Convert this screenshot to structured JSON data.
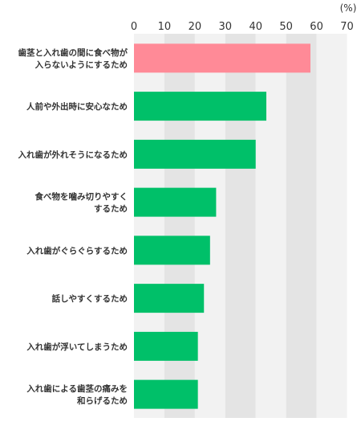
{
  "chart_data": {
    "type": "bar",
    "orientation": "horizontal",
    "unit_label": "(%)",
    "categories": [
      [
        "歯茎と入れ歯の間に食べ物が",
        "入らないようにするため"
      ],
      [
        "人前や外出時に安心なため"
      ],
      [
        "入れ歯が外れそうになるため"
      ],
      [
        "食べ物を噛み切りやすく",
        "するため"
      ],
      [
        "入れ歯がぐらぐらするため"
      ],
      [
        "話しやすくするため"
      ],
      [
        "入れ歯が浮いてしまうため"
      ],
      [
        "入れ歯による歯茎の痛みを",
        "和らげるため"
      ]
    ],
    "values": [
      58,
      43.5,
      40,
      27,
      25,
      23,
      21,
      21
    ],
    "highlight_index": 0,
    "xlim": [
      0,
      70
    ],
    "xticks": [
      0,
      10,
      20,
      30,
      40,
      50,
      60,
      70
    ],
    "grid": true,
    "colors": {
      "highlight": "#ff8a97",
      "bar": "#00c069",
      "band_light": "#f2f2f2",
      "band_dark": "#e4e4e4",
      "text": "#333333"
    }
  }
}
